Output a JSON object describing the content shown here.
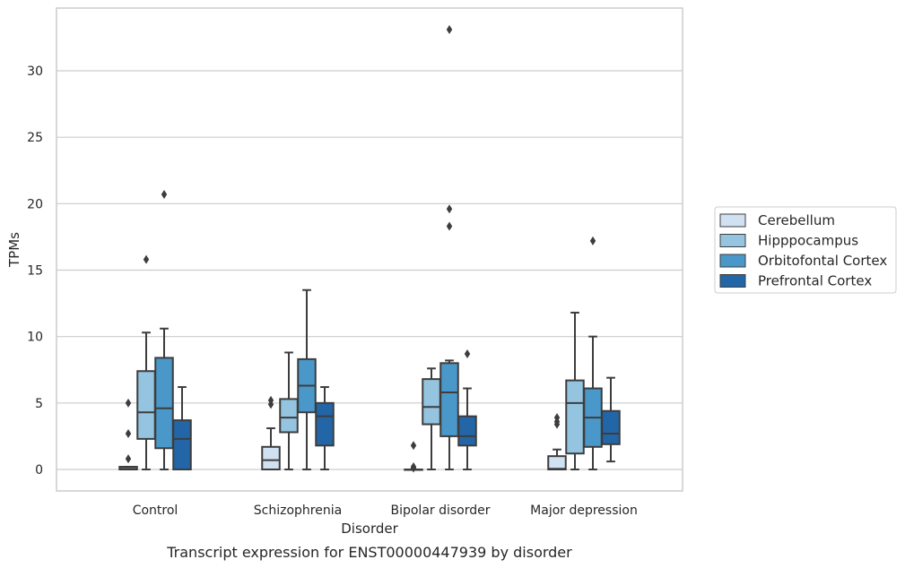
{
  "chart_data": {
    "type": "box",
    "caption": "Transcript expression for ENST00000447939 by disorder",
    "xlabel": "Disorder",
    "ylabel": "TPMs",
    "ylim": [
      -1.6,
      34.5
    ],
    "yticks": [
      0,
      5,
      10,
      15,
      20,
      25,
      30
    ],
    "grid": true,
    "legend_position": "right",
    "categories": [
      "Control",
      "Schizophrenia",
      "Bipolar disorder",
      "Major depression"
    ],
    "series": [
      {
        "name": "Cerebellum",
        "color": "#d0e1f2",
        "boxes": [
          {
            "whislo": 0,
            "q1": 0,
            "med": 0.05,
            "q3": 0.2,
            "whishi": 0.2,
            "fliers": [
              0.8,
              2.7,
              5.0
            ]
          },
          {
            "whislo": 0,
            "q1": 0,
            "med": 0.7,
            "q3": 1.7,
            "whishi": 3.1,
            "fliers": [
              4.9,
              5.2
            ]
          },
          {
            "whislo": 0,
            "q1": 0,
            "med": 0,
            "q3": 0,
            "whishi": 0,
            "fliers": [
              0.1,
              0.2,
              1.8
            ]
          },
          {
            "whislo": 0,
            "q1": 0,
            "med": 0.05,
            "q3": 1.0,
            "whishi": 1.5,
            "fliers": [
              3.4,
              3.6,
              3.9
            ]
          }
        ]
      },
      {
        "name": "Hipppocampus",
        "color": "#94c4df",
        "boxes": [
          {
            "whislo": 0,
            "q1": 2.3,
            "med": 4.3,
            "q3": 7.4,
            "whishi": 10.3,
            "fliers": [
              15.8
            ]
          },
          {
            "whislo": 0,
            "q1": 2.8,
            "med": 3.9,
            "q3": 5.3,
            "whishi": 8.8,
            "fliers": []
          },
          {
            "whislo": 0,
            "q1": 3.4,
            "med": 4.7,
            "q3": 6.8,
            "whishi": 7.6,
            "fliers": []
          },
          {
            "whislo": 0,
            "q1": 1.2,
            "med": 5.0,
            "q3": 6.7,
            "whishi": 11.8,
            "fliers": []
          }
        ]
      },
      {
        "name": "Orbitofontal Cortex",
        "color": "#4a98c9",
        "boxes": [
          {
            "whislo": 0,
            "q1": 1.6,
            "med": 4.6,
            "q3": 8.4,
            "whishi": 10.6,
            "fliers": [
              20.7
            ]
          },
          {
            "whislo": 0,
            "q1": 4.3,
            "med": 6.3,
            "q3": 8.3,
            "whishi": 13.5,
            "fliers": []
          },
          {
            "whislo": 0,
            "q1": 2.5,
            "med": 5.8,
            "q3": 8.0,
            "whishi": 8.2,
            "fliers": [
              18.3,
              19.6,
              33.1
            ]
          },
          {
            "whislo": 0,
            "q1": 1.7,
            "med": 3.9,
            "q3": 6.1,
            "whishi": 10.0,
            "fliers": [
              17.2
            ]
          }
        ]
      },
      {
        "name": "Prefrontal Cortex",
        "color": "#2366a8",
        "boxes": [
          {
            "whislo": 0,
            "q1": 0,
            "med": 2.3,
            "q3": 3.7,
            "whishi": 6.2,
            "fliers": []
          },
          {
            "whislo": 0,
            "q1": 1.8,
            "med": 4.0,
            "q3": 5.0,
            "whishi": 6.2,
            "fliers": []
          },
          {
            "whislo": 0,
            "q1": 1.8,
            "med": 2.5,
            "q3": 4.0,
            "whishi": 6.1,
            "fliers": [
              8.7
            ]
          },
          {
            "whislo": 0.6,
            "q1": 1.9,
            "med": 2.7,
            "q3": 4.4,
            "whishi": 6.9,
            "fliers": []
          }
        ]
      }
    ]
  }
}
